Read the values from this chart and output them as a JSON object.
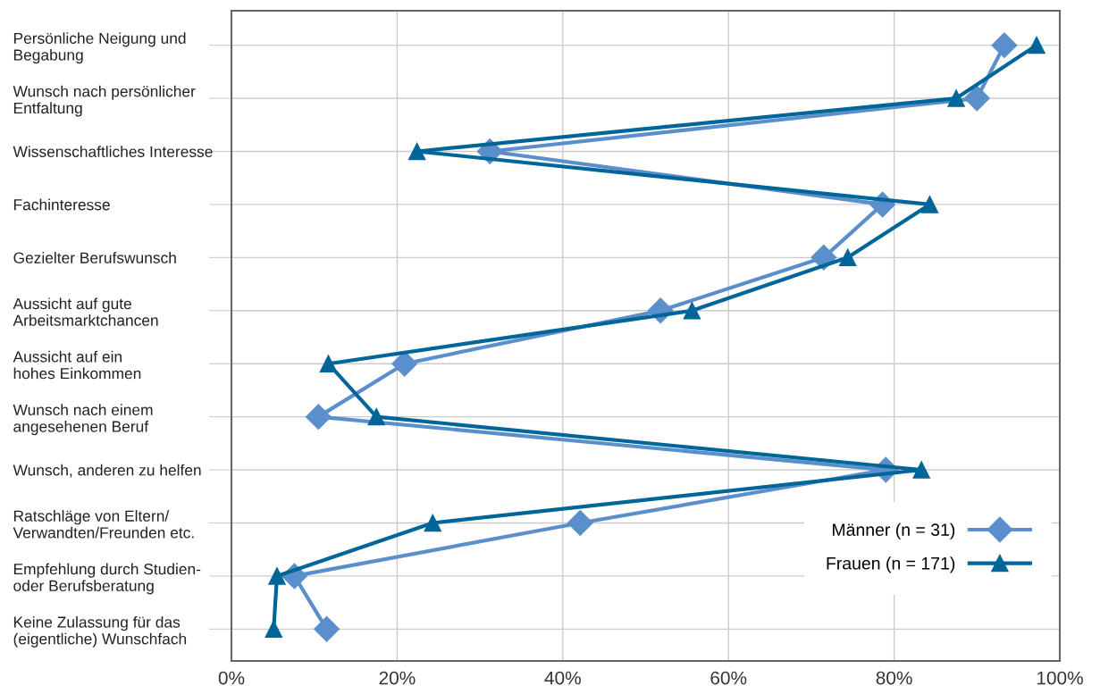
{
  "chart_data": {
    "type": "line",
    "orientation": "horizontal",
    "categories": [
      "Persönliche Neigung und\nBegabung",
      "Wunsch nach persönlicher\nEntfaltung",
      "Wissenschaftliches Interesse",
      "Fachinteresse",
      "Gezielter Berufswunsch",
      "Aussicht auf gute\nArbeitsmarktchancen",
      "Aussicht auf ein\nhohes Einkommen",
      "Wunsch nach einem\nangesehenen Beruf",
      "Wunsch, anderen zu helfen",
      "Ratschläge von Eltern/\nVerwandten/Freunden etc.",
      "Empfehlung durch Studien-\noder Berufsberatung",
      "Keine Zulassung für das\n(eigentliche) Wunschfach"
    ],
    "series": [
      {
        "name": "Männer (n = 31)",
        "color": "#5b8fcc",
        "marker": "diamond",
        "values": [
          93.3,
          90.0,
          31.2,
          78.6,
          71.5,
          51.8,
          20.9,
          10.5,
          79.0,
          42.1,
          7.6,
          11.5
        ]
      },
      {
        "name": "Frauen (n = 171)",
        "color": "#006699",
        "marker": "triangle",
        "values": [
          97.2,
          87.5,
          22.4,
          84.3,
          74.4,
          55.6,
          11.7,
          17.5,
          83.3,
          24.3,
          5.5,
          5.1
        ]
      }
    ],
    "xlim": [
      0,
      100
    ],
    "xticks": [
      {
        "value": 0,
        "label": "0%"
      },
      {
        "value": 20,
        "label": "20%"
      },
      {
        "value": 40,
        "label": "40%"
      },
      {
        "value": 60,
        "label": "60%"
      },
      {
        "value": 80,
        "label": "80%"
      },
      {
        "value": 100,
        "label": "100%"
      }
    ],
    "grid": true,
    "legend": "bottom right",
    "line_style": "solid"
  }
}
